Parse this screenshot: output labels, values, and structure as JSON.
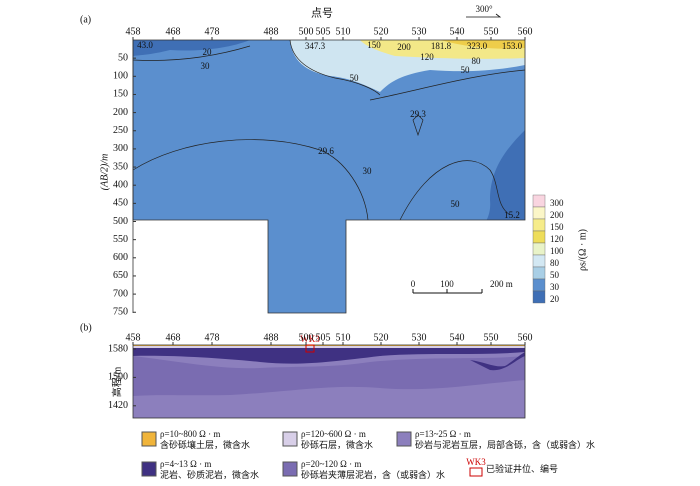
{
  "panel_a": {
    "label": "(a)",
    "x_title": "点号",
    "y_title": "(AB/2)/m",
    "north": "300°",
    "xticks": [
      458,
      468,
      478,
      488,
      500,
      505,
      510,
      520,
      530,
      540,
      550,
      560
    ],
    "yticks": [
      50,
      100,
      150,
      200,
      250,
      300,
      350,
      400,
      450,
      500,
      550,
      600,
      650,
      700,
      750
    ],
    "contour_labels": [
      "43.0",
      "20",
      "30",
      "347.3",
      "150",
      "200",
      "181.8",
      "323.0",
      "153.0",
      "120",
      "80",
      "50",
      "50",
      "29.3",
      "29.6",
      "30",
      "50",
      "15.2"
    ],
    "colorbar": {
      "title": "ρs/(Ω · m)",
      "levels": [
        300,
        200,
        150,
        120,
        100,
        80,
        50,
        30,
        20
      ]
    },
    "scale": [
      "0",
      "100",
      "200 m"
    ]
  },
  "panel_b": {
    "label": "(b)",
    "y_title": "高程/m",
    "xticks": [
      458,
      468,
      478,
      488,
      500,
      505,
      510,
      520,
      530,
      540,
      550,
      560
    ],
    "yticks": [
      1580,
      1500,
      1420
    ],
    "well": "WK3"
  },
  "legend": [
    {
      "range": "ρ=10~800 Ω · m",
      "desc": "含砂砾壤土层，微含水"
    },
    {
      "range": "ρ=120~600 Ω · m",
      "desc": "砂砾石层，微含水"
    },
    {
      "range": "ρ=13~25 Ω · m",
      "desc": "砂岩与泥岩互层，局部含砾，含（或弱含）水"
    },
    {
      "range": "ρ=4~13 Ω · m",
      "desc": "泥岩、砂质泥岩，微含水"
    },
    {
      "range": "ρ=20~120 Ω · m",
      "desc": "砂砾岩夹薄层泥岩，含（或弱含）水"
    },
    {
      "well": "WK3",
      "desc": "已验证井位、编号"
    }
  ]
}
